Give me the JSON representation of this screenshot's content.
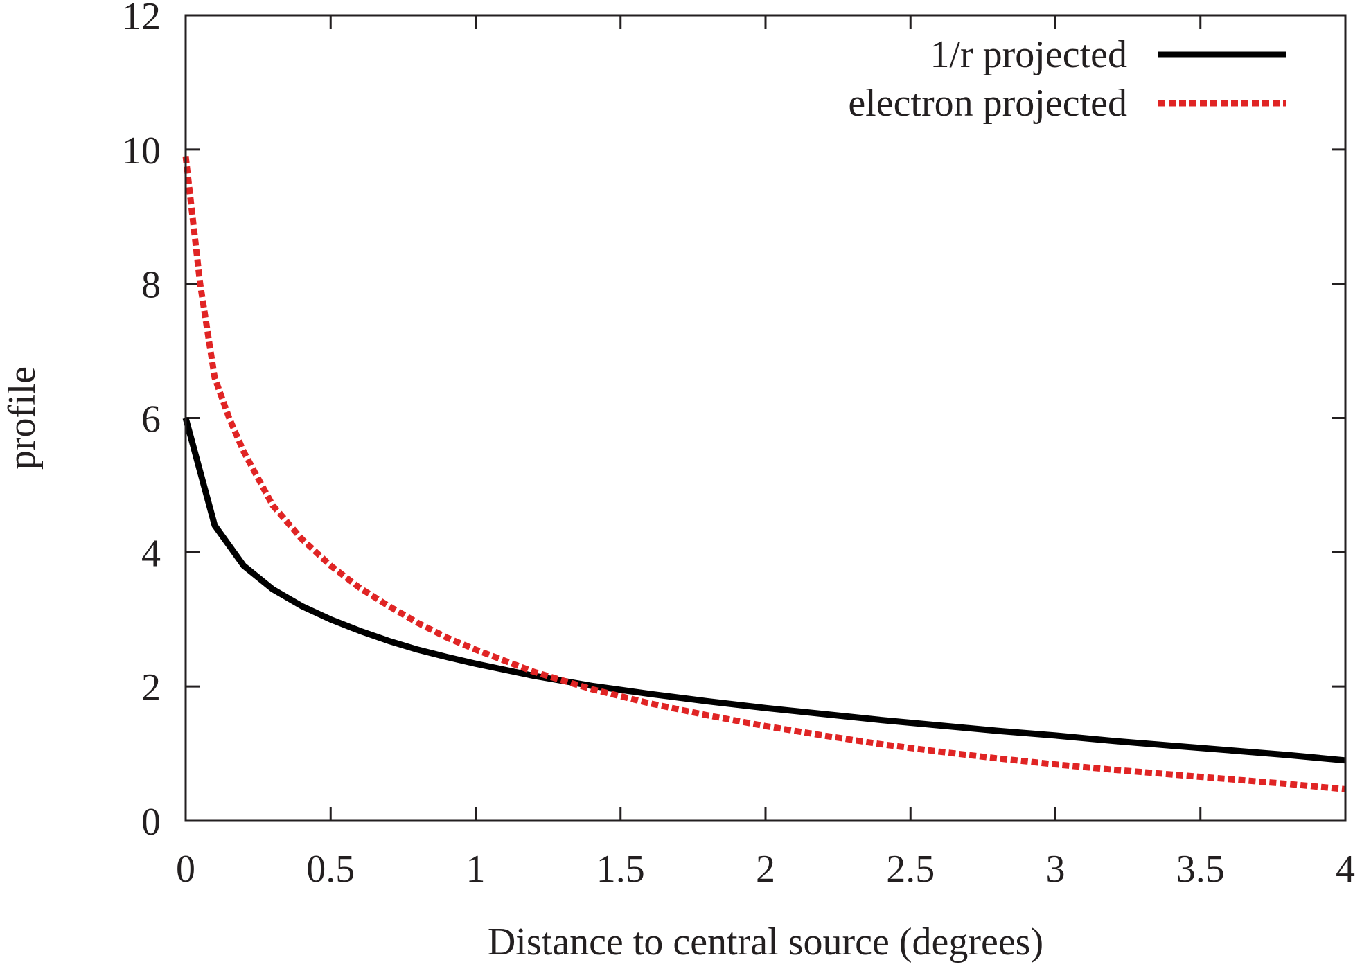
{
  "chart_data": {
    "type": "line",
    "title": "",
    "xlabel": "Distance to central source (degrees)",
    "ylabel": "profile",
    "xlim": [
      0,
      4
    ],
    "ylim": [
      0,
      12
    ],
    "xticks": [
      0,
      0.5,
      1,
      1.5,
      2,
      2.5,
      3,
      3.5,
      4
    ],
    "xtick_labels": [
      "0",
      "0.5",
      "1",
      "1.5",
      "2",
      "2.5",
      "3",
      "3.5",
      "4"
    ],
    "yticks": [
      0,
      2,
      4,
      6,
      8,
      10,
      12
    ],
    "ytick_labels": [
      "0",
      "2",
      "4",
      "6",
      "8",
      "10",
      "12"
    ],
    "grid": false,
    "legend_position": "top-right",
    "series": [
      {
        "name": "1/r projected",
        "color": "#000000",
        "style": "solid",
        "x": [
          0,
          0.1,
          0.2,
          0.3,
          0.4,
          0.5,
          0.6,
          0.7,
          0.8,
          0.9,
          1.0,
          1.2,
          1.4,
          1.6,
          1.8,
          2.0,
          2.2,
          2.4,
          2.6,
          2.8,
          3.0,
          3.2,
          3.4,
          3.6,
          3.8,
          4.0
        ],
        "y": [
          6.0,
          4.4,
          3.8,
          3.45,
          3.2,
          3.0,
          2.83,
          2.68,
          2.55,
          2.44,
          2.34,
          2.16,
          2.01,
          1.89,
          1.78,
          1.68,
          1.59,
          1.5,
          1.42,
          1.34,
          1.27,
          1.19,
          1.12,
          1.05,
          0.98,
          0.9
        ]
      },
      {
        "name": "electron projected",
        "color": "#e02424",
        "style": "dashed",
        "x": [
          0,
          0.05,
          0.1,
          0.15,
          0.2,
          0.3,
          0.4,
          0.5,
          0.6,
          0.7,
          0.8,
          0.9,
          1.0,
          1.2,
          1.4,
          1.6,
          1.8,
          2.0,
          2.2,
          2.4,
          2.6,
          2.8,
          3.0,
          3.2,
          3.4,
          3.6,
          3.8,
          4.0
        ],
        "y": [
          9.9,
          8.0,
          6.6,
          6.0,
          5.5,
          4.7,
          4.2,
          3.8,
          3.47,
          3.2,
          2.95,
          2.73,
          2.55,
          2.22,
          1.96,
          1.75,
          1.57,
          1.41,
          1.27,
          1.14,
          1.03,
          0.93,
          0.84,
          0.76,
          0.69,
          0.62,
          0.55,
          0.47
        ]
      }
    ]
  }
}
